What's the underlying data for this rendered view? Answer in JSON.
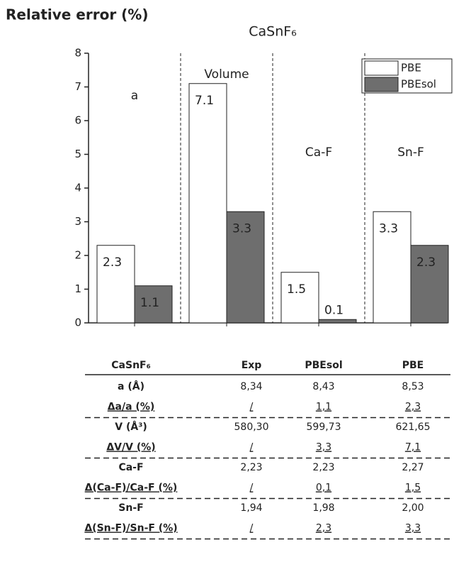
{
  "chart_data": {
    "type": "bar",
    "title": "CaSnF₆",
    "y_label": "Relative error (%)",
    "categories": [
      "a",
      "Volume",
      "Ca-F",
      "Sn-F"
    ],
    "series": [
      {
        "name": "PBE",
        "color": "#ffffff",
        "values": [
          2.3,
          7.1,
          1.5,
          3.3
        ]
      },
      {
        "name": "PBEsol",
        "color": "#6e6e6e",
        "values": [
          1.1,
          3.3,
          0.1,
          2.3
        ]
      }
    ],
    "ylim": [
      0,
      8
    ],
    "yticks": [
      0,
      1,
      2,
      3,
      4,
      5,
      6,
      7,
      8
    ],
    "grid": false,
    "legend": "upper right"
  },
  "table": {
    "header": [
      "CaSnF₆",
      "Exp",
      "PBEsol",
      "PBE"
    ],
    "rows": [
      [
        "a (Å)",
        "8,34",
        "8,43",
        "8,53"
      ],
      [
        "Δa/a (%)",
        "/",
        "1,1",
        "2,3"
      ],
      [
        "V (Å³)",
        "580,30",
        "599,73",
        "621,65"
      ],
      [
        "ΔV/V (%)",
        "/",
        "3,3",
        "7,1"
      ],
      [
        "Ca-F",
        "2,23",
        "2,23",
        "2,27"
      ],
      [
        "Δ(Ca-F)/Ca-F (%)",
        "/",
        "0,1",
        "1,5"
      ],
      [
        "Sn-F",
        "1,94",
        "1,98",
        "2,00"
      ],
      [
        "Δ(Sn-F)/Sn-F (%)",
        "/",
        "2,3",
        "3,3"
      ]
    ]
  }
}
